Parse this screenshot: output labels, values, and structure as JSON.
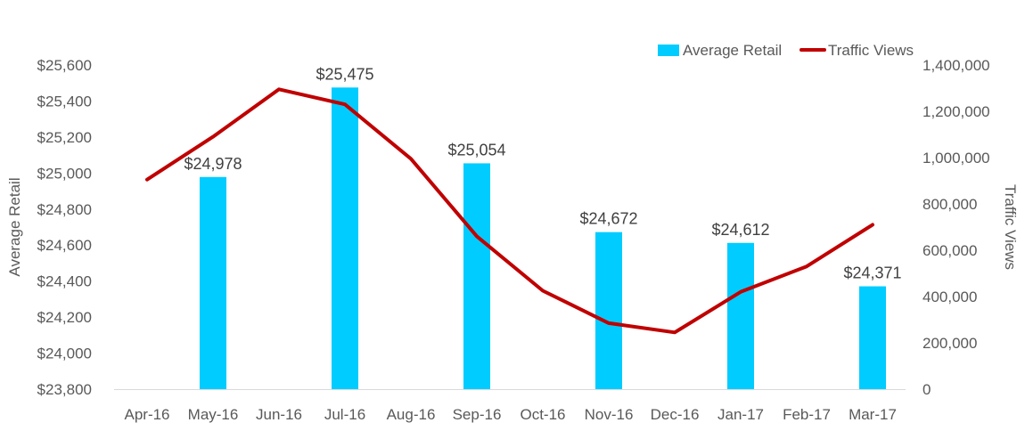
{
  "chart_data": {
    "type": "bar",
    "categories": [
      "Apr-16",
      "May-16",
      "Jun-16",
      "Jul-16",
      "Aug-16",
      "Sep-16",
      "Oct-16",
      "Nov-16",
      "Dec-16",
      "Jan-17",
      "Feb-17",
      "Mar-17"
    ],
    "series": [
      {
        "name": "Average Retail",
        "type": "bar",
        "axis": "left",
        "color": "#00CCFF",
        "values": [
          null,
          24978,
          null,
          25475,
          null,
          25054,
          null,
          24672,
          null,
          24612,
          null,
          24371
        ],
        "labels": [
          null,
          "$24,978",
          null,
          "$25,475",
          null,
          "$25,054",
          null,
          "$24,672",
          null,
          "$24,612",
          null,
          "$24,371"
        ]
      },
      {
        "name": "Traffic Views",
        "type": "line",
        "axis": "right",
        "color": "#C00000",
        "values": [
          905000,
          1090000,
          1295000,
          1230000,
          995000,
          660000,
          425000,
          285000,
          245000,
          420000,
          530000,
          710000
        ]
      }
    ],
    "ylabel": "Average Retail",
    "y2label": "Traffic Views",
    "ylim": [
      23800,
      25600
    ],
    "y2lim": [
      0,
      1400000
    ],
    "yticks": [
      "$23,800",
      "$24,000",
      "$24,200",
      "$24,400",
      "$24,600",
      "$24,800",
      "$25,000",
      "$25,200",
      "$25,400",
      "$25,600"
    ],
    "y2ticks": [
      "0",
      "200,000",
      "400,000",
      "600,000",
      "800,000",
      "1,000,000",
      "1,200,000",
      "1,400,000"
    ],
    "grid": false,
    "legend_position": "top-right"
  }
}
